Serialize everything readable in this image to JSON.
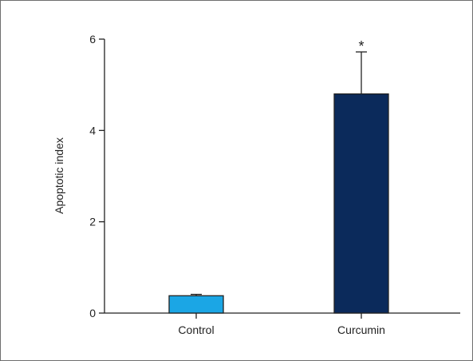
{
  "chart_data": {
    "type": "bar",
    "categories": [
      "Control",
      "Curcumin"
    ],
    "values": [
      0.38,
      4.8
    ],
    "errors": [
      0.03,
      0.92
    ],
    "colors": [
      "#1ba6e5",
      "#0b2a5b"
    ],
    "ylabel": "Apoptotic index",
    "ylim": [
      0,
      6
    ],
    "yticks": [
      0,
      2,
      4,
      6
    ],
    "annotations": [
      {
        "category": "Curcumin",
        "text": "*"
      }
    ],
    "grid": false
  }
}
